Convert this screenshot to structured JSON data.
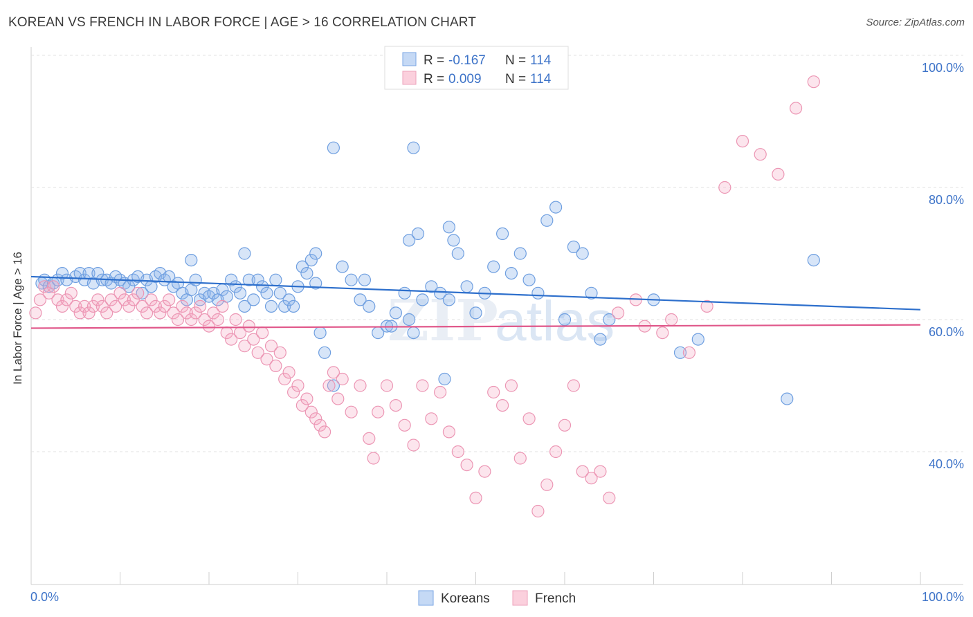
{
  "title": "KOREAN VS FRENCH IN LABOR FORCE | AGE > 16 CORRELATION CHART",
  "source": "Source: ZipAtlas.com",
  "watermark": "ZIPatlas",
  "chart_data": {
    "type": "scatter",
    "xlabel": "",
    "ylabel": "In Labor Force | Age > 16",
    "xlim": [
      0,
      100
    ],
    "ylim": [
      20,
      100
    ],
    "x_tick_labels": {
      "left": "0.0%",
      "right": "100.0%"
    },
    "y_ticks": [
      {
        "value": 100,
        "label": "100.0%"
      },
      {
        "value": 80,
        "label": "80.0%"
      },
      {
        "value": 60,
        "label": "60.0%"
      },
      {
        "value": 40,
        "label": "40.0%"
      }
    ],
    "grid": true,
    "legend_position": "top-center",
    "stats": [
      {
        "series": "Koreans",
        "r_label": "R =",
        "r_value": "-0.167",
        "n_label": "N =",
        "n_value": "114"
      },
      {
        "series": "French",
        "r_label": "R =",
        "r_value": "0.009",
        "n_label": "N =",
        "n_value": "114"
      }
    ],
    "series": [
      {
        "name": "Koreans",
        "color": "#7aaae6",
        "line_color": "#2d6fcc",
        "trend": {
          "x": [
            0,
            100
          ],
          "y": [
            66.5,
            61.5
          ]
        },
        "points": [
          [
            1.2,
            65.5
          ],
          [
            1.5,
            66
          ],
          [
            2,
            65
          ],
          [
            2.5,
            65.5
          ],
          [
            3,
            66
          ],
          [
            3.5,
            67
          ],
          [
            4,
            66
          ],
          [
            5,
            66.5
          ],
          [
            5.5,
            67
          ],
          [
            6,
            66
          ],
          [
            6.5,
            67
          ],
          [
            7,
            65.5
          ],
          [
            7.5,
            67
          ],
          [
            8,
            66
          ],
          [
            8.5,
            66
          ],
          [
            9,
            65.5
          ],
          [
            9.5,
            66.5
          ],
          [
            10,
            66
          ],
          [
            10.5,
            65.5
          ],
          [
            11,
            65
          ],
          [
            11.5,
            66
          ],
          [
            12,
            66.5
          ],
          [
            12.5,
            64
          ],
          [
            13,
            66
          ],
          [
            13.5,
            65
          ],
          [
            14,
            66.5
          ],
          [
            14.5,
            67
          ],
          [
            15,
            66
          ],
          [
            15.5,
            66.5
          ],
          [
            16,
            65
          ],
          [
            16.5,
            65.5
          ],
          [
            17,
            64
          ],
          [
            17.5,
            63
          ],
          [
            18,
            64.5
          ],
          [
            18.5,
            66
          ],
          [
            19,
            63
          ],
          [
            19.5,
            64
          ],
          [
            20,
            63.5
          ],
          [
            20.5,
            64
          ],
          [
            21,
            63
          ],
          [
            21.5,
            64.5
          ],
          [
            22,
            63.5
          ],
          [
            22.5,
            66
          ],
          [
            23,
            65
          ],
          [
            23.5,
            64
          ],
          [
            24,
            62
          ],
          [
            24.5,
            66
          ],
          [
            25,
            63
          ],
          [
            25.5,
            66
          ],
          [
            26,
            65
          ],
          [
            26.5,
            64
          ],
          [
            27,
            62
          ],
          [
            27.5,
            66
          ],
          [
            28,
            64
          ],
          [
            28.5,
            62
          ],
          [
            29,
            63
          ],
          [
            29.5,
            62
          ],
          [
            30,
            65
          ],
          [
            30.5,
            68
          ],
          [
            31,
            67
          ],
          [
            31.5,
            69
          ],
          [
            32,
            65.5
          ],
          [
            32.5,
            58
          ],
          [
            33,
            55
          ],
          [
            34,
            50
          ],
          [
            35,
            68
          ],
          [
            36,
            66
          ],
          [
            37,
            63
          ],
          [
            37.5,
            66
          ],
          [
            38,
            62
          ],
          [
            39,
            58
          ],
          [
            40,
            59
          ],
          [
            40.5,
            59
          ],
          [
            41,
            61
          ],
          [
            42,
            64
          ],
          [
            42.5,
            60
          ],
          [
            43,
            58
          ],
          [
            44,
            63
          ],
          [
            45,
            65
          ],
          [
            46,
            64
          ],
          [
            46.5,
            51
          ],
          [
            47,
            63
          ],
          [
            48,
            70
          ],
          [
            49,
            65
          ],
          [
            50,
            61
          ],
          [
            51,
            64
          ],
          [
            52,
            68
          ],
          [
            53,
            73
          ],
          [
            54,
            67
          ],
          [
            55,
            70
          ],
          [
            56,
            66
          ],
          [
            57,
            64
          ],
          [
            58,
            75
          ],
          [
            59,
            77
          ],
          [
            60,
            60
          ],
          [
            61,
            71
          ],
          [
            62,
            70
          ],
          [
            63,
            64
          ],
          [
            64,
            57
          ],
          [
            65,
            60
          ],
          [
            70,
            63
          ],
          [
            73,
            55
          ],
          [
            75,
            57
          ],
          [
            85,
            48
          ],
          [
            88,
            69
          ],
          [
            24,
            70
          ],
          [
            18,
            69
          ],
          [
            42.5,
            72
          ],
          [
            43.5,
            73
          ],
          [
            47,
            74
          ],
          [
            47.5,
            72
          ],
          [
            43,
            86
          ],
          [
            34,
            86
          ],
          [
            32,
            70
          ]
        ]
      },
      {
        "name": "French",
        "color": "#f0a0bb",
        "line_color": "#e0578a",
        "trend": {
          "x": [
            0,
            100
          ],
          "y": [
            58.7,
            59.2
          ]
        },
        "points": [
          [
            0.5,
            61
          ],
          [
            1,
            63
          ],
          [
            1.5,
            65
          ],
          [
            2,
            64
          ],
          [
            2.5,
            65
          ],
          [
            3,
            63
          ],
          [
            3.5,
            62
          ],
          [
            4,
            63
          ],
          [
            4.5,
            64
          ],
          [
            5,
            62
          ],
          [
            5.5,
            61
          ],
          [
            6,
            62
          ],
          [
            6.5,
            61
          ],
          [
            7,
            62
          ],
          [
            7.5,
            63
          ],
          [
            8,
            62
          ],
          [
            8.5,
            61
          ],
          [
            9,
            63
          ],
          [
            9.5,
            62
          ],
          [
            10,
            64
          ],
          [
            10.5,
            63
          ],
          [
            11,
            62
          ],
          [
            11.5,
            63
          ],
          [
            12,
            64
          ],
          [
            12.5,
            62
          ],
          [
            13,
            61
          ],
          [
            13.5,
            63
          ],
          [
            14,
            62
          ],
          [
            14.5,
            61
          ],
          [
            15,
            62
          ],
          [
            15.5,
            63
          ],
          [
            16,
            61
          ],
          [
            16.5,
            60
          ],
          [
            17,
            62
          ],
          [
            17.5,
            61
          ],
          [
            18,
            60
          ],
          [
            18.5,
            61
          ],
          [
            19,
            62
          ],
          [
            19.5,
            60
          ],
          [
            20,
            59
          ],
          [
            20.5,
            61
          ],
          [
            21,
            60
          ],
          [
            21.5,
            62
          ],
          [
            22,
            58
          ],
          [
            22.5,
            57
          ],
          [
            23,
            60
          ],
          [
            23.5,
            58
          ],
          [
            24,
            56
          ],
          [
            24.5,
            59
          ],
          [
            25,
            57
          ],
          [
            25.5,
            55
          ],
          [
            26,
            58
          ],
          [
            26.5,
            54
          ],
          [
            27,
            56
          ],
          [
            27.5,
            53
          ],
          [
            28,
            55
          ],
          [
            28.5,
            51
          ],
          [
            29,
            52
          ],
          [
            29.5,
            49
          ],
          [
            30,
            50
          ],
          [
            30.5,
            47
          ],
          [
            31,
            48
          ],
          [
            31.5,
            46
          ],
          [
            32,
            45
          ],
          [
            32.5,
            44
          ],
          [
            33,
            43
          ],
          [
            33.5,
            50
          ],
          [
            34,
            52
          ],
          [
            34.5,
            48
          ],
          [
            35,
            51
          ],
          [
            36,
            46
          ],
          [
            37,
            50
          ],
          [
            38,
            42
          ],
          [
            38.5,
            39
          ],
          [
            39,
            46
          ],
          [
            40,
            50
          ],
          [
            41,
            47
          ],
          [
            42,
            44
          ],
          [
            43,
            41
          ],
          [
            44,
            50
          ],
          [
            45,
            45
          ],
          [
            46,
            49
          ],
          [
            47,
            43
          ],
          [
            48,
            40
          ],
          [
            49,
            38
          ],
          [
            50,
            33
          ],
          [
            51,
            37
          ],
          [
            52,
            49
          ],
          [
            53,
            47
          ],
          [
            54,
            50
          ],
          [
            55,
            39
          ],
          [
            56,
            45
          ],
          [
            57,
            31
          ],
          [
            58,
            35
          ],
          [
            59,
            40
          ],
          [
            60,
            44
          ],
          [
            61,
            50
          ],
          [
            62,
            37
          ],
          [
            63,
            36
          ],
          [
            64,
            37
          ],
          [
            65,
            33
          ],
          [
            66,
            61
          ],
          [
            68,
            63
          ],
          [
            69,
            59
          ],
          [
            71,
            58
          ],
          [
            72,
            60
          ],
          [
            74,
            55
          ],
          [
            76,
            62
          ],
          [
            78,
            80
          ],
          [
            80,
            87
          ],
          [
            82,
            85
          ],
          [
            84,
            82
          ],
          [
            86,
            92
          ],
          [
            88,
            96
          ]
        ]
      }
    ]
  }
}
